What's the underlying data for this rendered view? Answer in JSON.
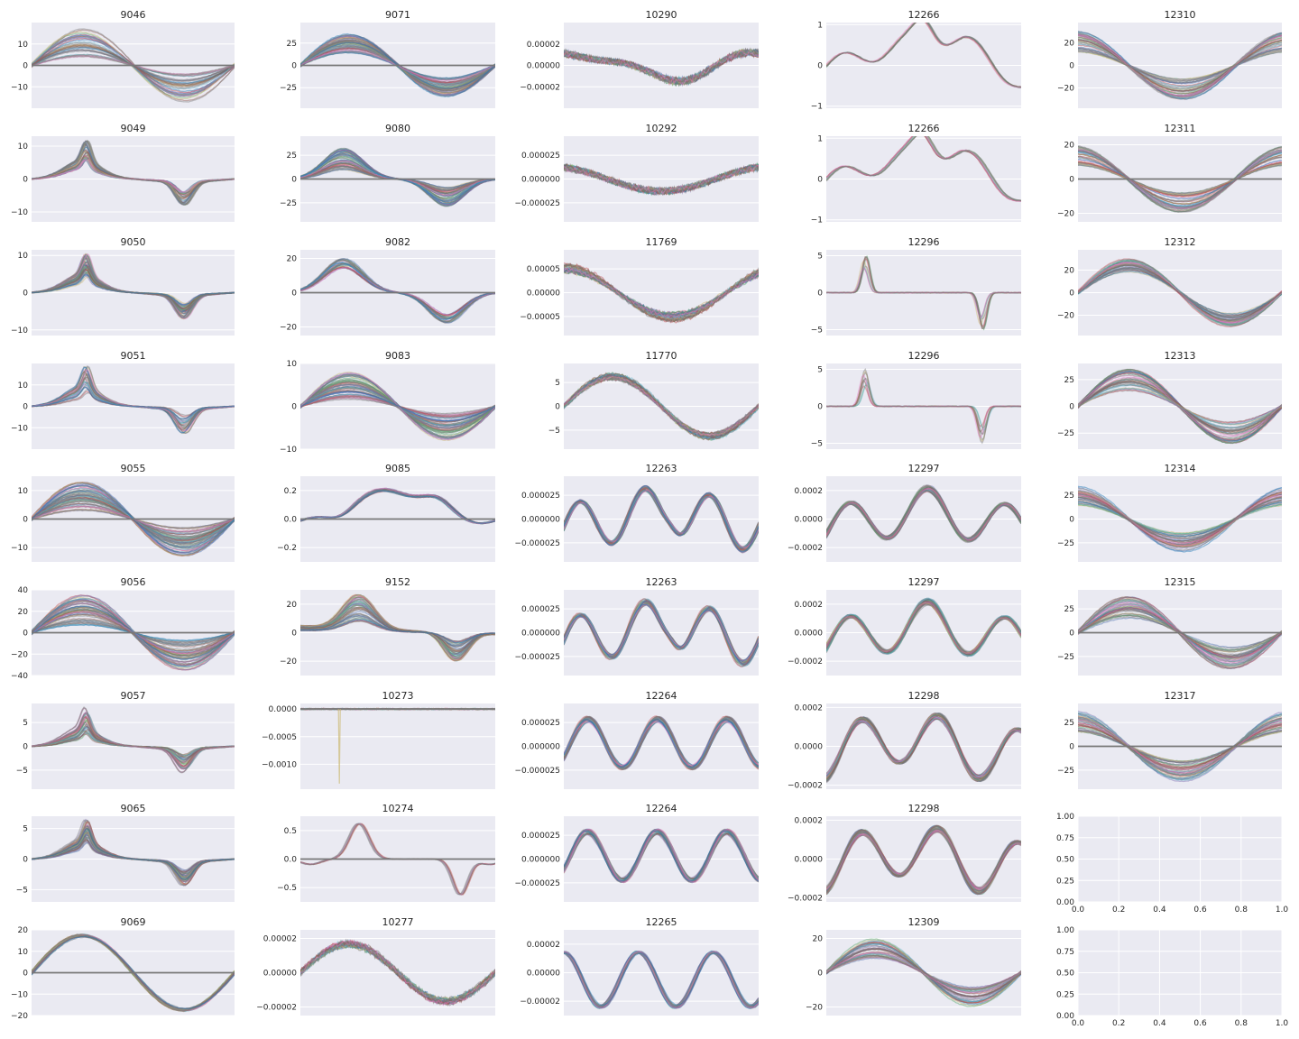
{
  "figure": {
    "rows": 9,
    "cols": 5,
    "background": "#ffffff",
    "axes_facecolor": "#EAEAF2",
    "grid": true
  },
  "palette": [
    "#4C72B0",
    "#55A868",
    "#C44E52",
    "#8172B2",
    "#CCB974",
    "#64B5CD",
    "#7f7f7f",
    "#8c564b",
    "#e377c2",
    "#1f77b4"
  ],
  "chart_data": [
    {
      "type": "line",
      "title": "9046",
      "ylim": [
        -20,
        20
      ],
      "yticks": [
        "10",
        "0",
        "−10"
      ],
      "ytick_values": [
        10,
        0,
        -10
      ],
      "shape": "sin1",
      "amp": 17,
      "lines": 40,
      "spread": 0.8,
      "flat": true
    },
    {
      "type": "line",
      "title": "9071",
      "ylim": [
        -48,
        48
      ],
      "yticks": [
        "25",
        "0",
        "−25"
      ],
      "ytick_values": [
        25,
        0,
        -25
      ],
      "shape": "sin1",
      "amp": 35,
      "lines": 60,
      "spread": 0.6,
      "flat": true
    },
    {
      "type": "line",
      "title": "10290",
      "ylim": [
        -4e-05,
        4e-05
      ],
      "yticks": [
        "0.00002",
        "0.00000",
        "−0.00002"
      ],
      "ytick_values": [
        2e-05,
        0,
        -2e-05
      ],
      "shape": "tro",
      "amp": 2.2e-05,
      "lines": 40,
      "spread": 0.2,
      "noise": 0.25
    },
    {
      "type": "line",
      "title": "12266",
      "ylim": [
        -1.05,
        1.05
      ],
      "yticks": [
        "1",
        "0",
        "−1"
      ],
      "ytick_values": [
        1,
        0,
        -1
      ],
      "shape": "wav",
      "amp": 0.85,
      "lines": 10,
      "spread": 0.05
    },
    {
      "type": "line",
      "title": "12310",
      "ylim": [
        -38,
        38
      ],
      "yticks": [
        "20",
        "0",
        "−20"
      ],
      "ytick_values": [
        20,
        0,
        -20
      ],
      "shape": "cos1",
      "amp": 30,
      "lines": 40,
      "spread": 0.6
    },
    {
      "type": "line",
      "title": "9049",
      "ylim": [
        -13,
        13
      ],
      "yticks": [
        "10",
        "0",
        "−10"
      ],
      "ytick_values": [
        10,
        0,
        -10
      ],
      "shape": "spk",
      "amp": 10,
      "lines": 40,
      "spread": 0.5
    },
    {
      "type": "line",
      "title": "9080",
      "ylim": [
        -45,
        45
      ],
      "yticks": [
        "25",
        "0",
        "−25"
      ],
      "ytick_values": [
        25,
        0,
        -25
      ],
      "shape": "bump",
      "amp": 36,
      "lines": 60,
      "spread": 0.7,
      "flat": true
    },
    {
      "type": "line",
      "title": "10292",
      "ylim": [
        -4.5e-05,
        4.5e-05
      ],
      "yticks": [
        "0.000025",
        "0.000000",
        "−0.000025"
      ],
      "ytick_values": [
        2.5e-05,
        0,
        -2.5e-05
      ],
      "shape": "tro2",
      "amp": 2e-05,
      "lines": 40,
      "spread": 0.2,
      "noise": 0.3
    },
    {
      "type": "line",
      "title": "12266",
      "ylim": [
        -1.05,
        1.05
      ],
      "yticks": [
        "1",
        "0",
        "−1"
      ],
      "ytick_values": [
        1,
        0,
        -1
      ],
      "shape": "wav",
      "amp": 0.85,
      "lines": 10,
      "spread": 0.05
    },
    {
      "type": "line",
      "title": "12311",
      "ylim": [
        -25,
        25
      ],
      "yticks": [
        "20",
        "0",
        "−20"
      ],
      "ytick_values": [
        20,
        0,
        -20
      ],
      "shape": "cos1",
      "amp": 20,
      "lines": 40,
      "spread": 0.6,
      "flat": true
    },
    {
      "type": "line",
      "title": "9050",
      "ylim": [
        -11.5,
        11.5
      ],
      "yticks": [
        "10",
        "0",
        "−10"
      ],
      "ytick_values": [
        10,
        0,
        -10
      ],
      "shape": "spk",
      "amp": 9,
      "lines": 50,
      "spread": 0.6
    },
    {
      "type": "line",
      "title": "9082",
      "ylim": [
        -25,
        25
      ],
      "yticks": [
        "20",
        "0",
        "−20"
      ],
      "ytick_values": [
        20,
        0,
        -20
      ],
      "shape": "bump",
      "amp": 22,
      "lines": 30,
      "spread": 0.3,
      "flat": true
    },
    {
      "type": "line",
      "title": "11769",
      "ylim": [
        -9e-05,
        9e-05
      ],
      "yticks": [
        "0.00005",
        "0.00000",
        "−0.00005"
      ],
      "ytick_values": [
        5e-05,
        0,
        -5e-05
      ],
      "shape": "cos2",
      "amp": 6e-05,
      "lines": 40,
      "spread": 0.3,
      "noise": 0.12
    },
    {
      "type": "line",
      "title": "12296",
      "ylim": [
        -5.8,
        5.8
      ],
      "yticks": [
        "5",
        "0",
        "−5"
      ],
      "ytick_values": [
        5,
        0,
        -5
      ],
      "shape": "pk",
      "amp": 5,
      "lines": 10,
      "spread": 0.5
    },
    {
      "type": "line",
      "title": "12312",
      "ylim": [
        -38,
        38
      ],
      "yticks": [
        "20",
        "0",
        "−20"
      ],
      "ytick_values": [
        20,
        0,
        -20
      ],
      "shape": "sin1",
      "amp": 30,
      "lines": 40,
      "spread": 0.4
    },
    {
      "type": "line",
      "title": "9051",
      "ylim": [
        -20,
        20
      ],
      "yticks": [
        "10",
        "0",
        "−10"
      ],
      "ytick_values": [
        10,
        0,
        -10
      ],
      "shape": "spk",
      "amp": 16,
      "lines": 30,
      "spread": 0.7
    },
    {
      "type": "line",
      "title": "9083",
      "ylim": [
        -10,
        10
      ],
      "yticks": [
        "10",
        "0",
        "−10"
      ],
      "ytick_values": [
        10,
        0,
        -10
      ],
      "shape": "sin1",
      "amp": 8,
      "lines": 60,
      "spread": 0.8
    },
    {
      "type": "line",
      "title": "11770",
      "ylim": [
        -9,
        9
      ],
      "yticks": [
        "5",
        "0",
        "−5"
      ],
      "ytick_values": [
        5,
        0,
        -5
      ],
      "shape": "sin1",
      "amp": 7,
      "lines": 40,
      "spread": 0.2,
      "noise": 0.08
    },
    {
      "type": "line",
      "title": "12296",
      "ylim": [
        -5.8,
        5.8
      ],
      "yticks": [
        "5",
        "0",
        "−5"
      ],
      "ytick_values": [
        5,
        0,
        -5
      ],
      "shape": "pk",
      "amp": 5,
      "lines": 10,
      "spread": 0.5
    },
    {
      "type": "line",
      "title": "12313",
      "ylim": [
        -40,
        40
      ],
      "yticks": [
        "25",
        "0",
        "−25"
      ],
      "ytick_values": [
        25,
        0,
        -25
      ],
      "shape": "sin1",
      "amp": 35,
      "lines": 40,
      "spread": 0.6
    },
    {
      "type": "line",
      "title": "9055",
      "ylim": [
        -15,
        15
      ],
      "yticks": [
        "10",
        "0",
        "−10"
      ],
      "ytick_values": [
        10,
        0,
        -10
      ],
      "shape": "sin1",
      "amp": 13,
      "lines": 60,
      "spread": 0.8,
      "flat": true
    },
    {
      "type": "line",
      "title": "9085",
      "ylim": [
        -0.3,
        0.3
      ],
      "yticks": [
        "0.2",
        "0.0",
        "−0.2"
      ],
      "ytick_values": [
        0.2,
        0,
        -0.2
      ],
      "shape": "plat",
      "amp": 0.23,
      "lines": 30,
      "spread": 0.1,
      "flat": true
    },
    {
      "type": "line",
      "title": "12263",
      "ylim": [
        -4.5e-05,
        4.5e-05
      ],
      "yticks": [
        "0.000025",
        "0.000000",
        "−0.000025"
      ],
      "ytick_values": [
        2.5e-05,
        0,
        -2.5e-05
      ],
      "shape": "osc",
      "amp": 3.5e-05,
      "lines": 30,
      "spread": 0.2
    },
    {
      "type": "line",
      "title": "12297",
      "ylim": [
        -0.0003,
        0.0003
      ],
      "yticks": [
        "0.0002",
        "0.0000",
        "−0.0002"
      ],
      "ytick_values": [
        0.0002,
        0,
        -0.0002
      ],
      "shape": "osc2",
      "amp": 0.00022,
      "lines": 40,
      "spread": 0.2
    },
    {
      "type": "line",
      "title": "12314",
      "ylim": [
        -45,
        45
      ],
      "yticks": [
        "25",
        "0",
        "−25"
      ],
      "ytick_values": [
        25,
        0,
        -25
      ],
      "shape": "cos1",
      "amp": 35,
      "lines": 40,
      "spread": 0.6
    },
    {
      "type": "line",
      "title": "9056",
      "ylim": [
        -40,
        40
      ],
      "yticks": [
        "40",
        "20",
        "0",
        "−20",
        "−40"
      ],
      "ytick_values": [
        40,
        20,
        0,
        -20,
        -40
      ],
      "shape": "sin1",
      "amp": 35,
      "lines": 60,
      "spread": 0.8,
      "flat": true
    },
    {
      "type": "line",
      "title": "9152",
      "ylim": [
        -30,
        30
      ],
      "yticks": [
        "20",
        "0",
        "−20"
      ],
      "ytick_values": [
        20,
        0,
        -20
      ],
      "shape": "bump2",
      "amp": 25,
      "lines": 50,
      "spread": 0.7
    },
    {
      "type": "line",
      "title": "12263",
      "ylim": [
        -4.5e-05,
        4.5e-05
      ],
      "yticks": [
        "0.000025",
        "0.000000",
        "−0.000025"
      ],
      "ytick_values": [
        2.5e-05,
        0,
        -2.5e-05
      ],
      "shape": "osc",
      "amp": 3.5e-05,
      "lines": 30,
      "spread": 0.2
    },
    {
      "type": "line",
      "title": "12297",
      "ylim": [
        -0.0003,
        0.0003
      ],
      "yticks": [
        "0.0002",
        "0.0000",
        "−0.0002"
      ],
      "ytick_values": [
        0.0002,
        0,
        -0.0002
      ],
      "shape": "osc2",
      "amp": 0.00022,
      "lines": 40,
      "spread": 0.2
    },
    {
      "type": "line",
      "title": "12315",
      "ylim": [
        -45,
        45
      ],
      "yticks": [
        "25",
        "0",
        "−25"
      ],
      "ytick_values": [
        25,
        0,
        -25
      ],
      "shape": "sin1",
      "amp": 38,
      "lines": 40,
      "spread": 0.6,
      "flat": true
    },
    {
      "type": "line",
      "title": "9057",
      "ylim": [
        -9,
        9
      ],
      "yticks": [
        "5",
        "0",
        "−5"
      ],
      "ytick_values": [
        5,
        0,
        -5
      ],
      "shape": "spk",
      "amp": 7,
      "lines": 40,
      "spread": 0.7
    },
    {
      "type": "line",
      "title": "10273",
      "ylim": [
        -0.00145,
        0.0001
      ],
      "yticks": [
        "0.0000",
        "−0.0005",
        "−0.0010"
      ],
      "ytick_values": [
        0,
        -0.0005,
        -0.001
      ],
      "shape": "drop",
      "amp": 0.0013,
      "lines": 10,
      "spread": 0
    },
    {
      "type": "line",
      "title": "12264",
      "ylim": [
        -4.5e-05,
        4.5e-05
      ],
      "yticks": [
        "0.000025",
        "0.000000",
        "−0.000025"
      ],
      "ytick_values": [
        2.5e-05,
        0,
        -2.5e-05
      ],
      "shape": "osc3",
      "amp": 3.5e-05,
      "lines": 30,
      "spread": 0.2
    },
    {
      "type": "line",
      "title": "12298",
      "ylim": [
        -0.00022,
        0.00022
      ],
      "yticks": [
        "0.0002",
        "0.0000",
        "−0.0002"
      ],
      "ytick_values": [
        0.0002,
        0,
        -0.0002
      ],
      "shape": "osc4",
      "amp": 0.00018,
      "lines": 40,
      "spread": 0.2
    },
    {
      "type": "line",
      "title": "12317",
      "ylim": [
        -45,
        45
      ],
      "yticks": [
        "25",
        "0",
        "−25"
      ],
      "ytick_values": [
        25,
        0,
        -25
      ],
      "shape": "cos1",
      "amp": 38,
      "lines": 40,
      "spread": 0.6,
      "flat": true
    },
    {
      "type": "line",
      "title": "9065",
      "ylim": [
        -7,
        7
      ],
      "yticks": [
        "5",
        "0",
        "−5"
      ],
      "ytick_values": [
        5,
        0,
        -5
      ],
      "shape": "spk",
      "amp": 5.5,
      "lines": 50,
      "spread": 0.6
    },
    {
      "type": "line",
      "title": "10274",
      "ylim": [
        -0.75,
        0.75
      ],
      "yticks": [
        "0.5",
        "0.0",
        "−0.5"
      ],
      "ytick_values": [
        0.5,
        0,
        -0.5
      ],
      "shape": "pk2",
      "amp": 0.62,
      "lines": 10,
      "spread": 0,
      "flat": true
    },
    {
      "type": "line",
      "title": "12264",
      "ylim": [
        -4.5e-05,
        4.5e-05
      ],
      "yticks": [
        "0.000025",
        "0.000000",
        "−0.000025"
      ],
      "ytick_values": [
        2.5e-05,
        0,
        -2.5e-05
      ],
      "shape": "osc3",
      "amp": 3.5e-05,
      "lines": 30,
      "spread": 0.2
    },
    {
      "type": "line",
      "title": "12298",
      "ylim": [
        -0.00022,
        0.00022
      ],
      "yticks": [
        "0.0002",
        "0.0000",
        "−0.0002"
      ],
      "ytick_values": [
        0.0002,
        0,
        -0.0002
      ],
      "shape": "osc4",
      "amp": 0.00018,
      "lines": 40,
      "spread": 0.2
    },
    {
      "type": "empty",
      "title": "",
      "xlim": [
        0,
        1
      ],
      "ylim": [
        0,
        1
      ],
      "xticks": [
        "0.0",
        "0.2",
        "0.4",
        "0.6",
        "0.8",
        "1.0"
      ],
      "yticks": [
        "1.00",
        "0.75",
        "0.50",
        "0.25",
        "0.00"
      ]
    },
    {
      "type": "line",
      "title": "9069",
      "ylim": [
        -20,
        20
      ],
      "yticks": [
        "20",
        "10",
        "0",
        "−10",
        "−20"
      ],
      "ytick_values": [
        20,
        10,
        0,
        -10,
        -20
      ],
      "shape": "sin1",
      "amp": 18,
      "lines": 20,
      "spread": 0.08,
      "flat": true
    },
    {
      "type": "line",
      "title": "10277",
      "ylim": [
        -2.5e-05,
        2.5e-05
      ],
      "yticks": [
        "0.00002",
        "0.00000",
        "−0.00002"
      ],
      "ytick_values": [
        2e-05,
        0,
        -2e-05
      ],
      "shape": "sin1",
      "amp": 1.8e-05,
      "lines": 40,
      "spread": 0.15,
      "noise": 0.15
    },
    {
      "type": "line",
      "title": "12265",
      "ylim": [
        -3e-05,
        3e-05
      ],
      "yticks": [
        "0.00002",
        "0.00000",
        "−0.00002"
      ],
      "ytick_values": [
        2e-05,
        0,
        -2e-05
      ],
      "shape": "osc5",
      "amp": 2.5e-05,
      "lines": 30,
      "spread": 0.1
    },
    {
      "type": "line",
      "title": "12309",
      "ylim": [
        -25,
        25
      ],
      "yticks": [
        "20",
        "0",
        "−20"
      ],
      "ytick_values": [
        20,
        0,
        -20
      ],
      "shape": "sin1",
      "amp": 20,
      "lines": 40,
      "spread": 0.6
    },
    {
      "type": "empty",
      "title": "",
      "xlim": [
        0,
        1
      ],
      "ylim": [
        0,
        1
      ],
      "xticks": [
        "0.0",
        "0.2",
        "0.4",
        "0.6",
        "0.8",
        "1.0"
      ],
      "yticks": [
        "1.00",
        "0.75",
        "0.50",
        "0.25",
        "0.00"
      ]
    }
  ]
}
